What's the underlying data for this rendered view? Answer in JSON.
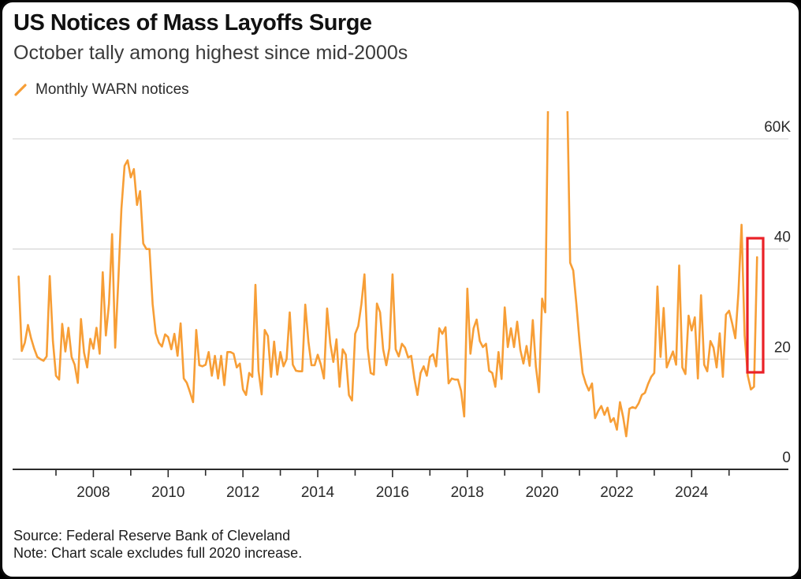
{
  "header": {
    "title": "US Notices of Mass Layoffs Surge",
    "subtitle": "October tally among highest since mid-2000s"
  },
  "legend": {
    "label": "Monthly WARN notices"
  },
  "footer": {
    "source": "Source: Federal Reserve Bank of Cleveland",
    "note": "Note: Chart scale excludes full 2020 increase."
  },
  "colors": {
    "line_orange": "#f79e36",
    "highlight_red": "#ea2127",
    "gridline_gray": "#d9d9d9",
    "axis_dark": "#2b2b2b",
    "tick_label": "#2a2a2a"
  },
  "chart_data": {
    "type": "line",
    "title": "US Notices of Mass Layoffs Surge",
    "subtitle": "October tally among highest since mid-2000s",
    "series_name": "Monthly WARN notices",
    "unit": "WARN notices, thousands",
    "grid": "horizontal",
    "ylim": [
      0,
      65
    ],
    "clipped_peaks": "Mar 2020 through Sep 2020 exceed the visible scale (chart scale excludes full 2020 increase)",
    "y_axis": {
      "ticks": [
        {
          "value": 0,
          "label": "0"
        },
        {
          "value": 20,
          "label": "20"
        },
        {
          "value": 40,
          "label": "40"
        },
        {
          "value": 60,
          "label": "60K"
        }
      ],
      "side": "right"
    },
    "x_axis": {
      "tick_years_first": 2007,
      "tick_years_last": 2025,
      "labels": [
        "2008",
        "2010",
        "2012",
        "2014",
        "2016",
        "2018",
        "2020",
        "2022",
        "2024"
      ]
    },
    "series": {
      "name": "Monthly WARN notices",
      "start_month": "2006-01",
      "end_month": "2025-10",
      "monthly_values_by_year": [
        {
          "year": 2006,
          "values": [
            35,
            21.5,
            23,
            26.2,
            23.8,
            21.9,
            20.4,
            20,
            19.7,
            20.5,
            35.1,
            23.3
          ]
        },
        {
          "year": 2007,
          "values": [
            17,
            16.3,
            26.4,
            21.4,
            25.7,
            20.4,
            19,
            15.7,
            27.3,
            21.2,
            18.5,
            23.7
          ]
        },
        {
          "year": 2008,
          "values": [
            21.9,
            25.7,
            21,
            35.8,
            24.3,
            30,
            42.7,
            22.1,
            34.4,
            47.3,
            55.1,
            56.1
          ]
        },
        {
          "year": 2009,
          "values": [
            53,
            54.5,
            48,
            50.5,
            41,
            40,
            40,
            30,
            24.7,
            23,
            22.3,
            24.5
          ]
        },
        {
          "year": 2010,
          "values": [
            24,
            21.8,
            24.6,
            20.6,
            26.5,
            16.5,
            15.7,
            14,
            12.2,
            25.3,
            18.9,
            18.7
          ]
        },
        {
          "year": 2011,
          "values": [
            19,
            21.3,
            17,
            20.6,
            16.5,
            20.6,
            15.3,
            21.3,
            21.3,
            21,
            18.5,
            19.2
          ]
        },
        {
          "year": 2012,
          "values": [
            14.5,
            13.5,
            17.5,
            16.8,
            33.5,
            17.9,
            13.6,
            25.3,
            24.2,
            16.8,
            23.2,
            17.2
          ]
        },
        {
          "year": 2013,
          "values": [
            21.3,
            18.7,
            20,
            28.5,
            19,
            17.9,
            17.8,
            17.8,
            29.9,
            23.2,
            18.9,
            18.9
          ]
        },
        {
          "year": 2014,
          "values": [
            20.8,
            19,
            16.5,
            29.2,
            22.9,
            19.5,
            23.6,
            15,
            21.8,
            20.8,
            13.5,
            12.5
          ]
        },
        {
          "year": 2015,
          "values": [
            24.6,
            26,
            30,
            35.4,
            22,
            17.5,
            17.2,
            30.1,
            28.5,
            21.8,
            18.9,
            22
          ]
        },
        {
          "year": 2016,
          "values": [
            35.4,
            21.8,
            20.5,
            22.8,
            22.1,
            20.3,
            20.6,
            16.5,
            13.5,
            17.5,
            18.7,
            17
          ]
        },
        {
          "year": 2017,
          "values": [
            20.4,
            20.9,
            18.7,
            25.6,
            24.6,
            25.8,
            15.6,
            16.5,
            16.3,
            16.3,
            14.2,
            9.6
          ]
        },
        {
          "year": 2018,
          "values": [
            32.8,
            21,
            25.6,
            27.2,
            23.3,
            22.2,
            22.8,
            17.9,
            17.5,
            15,
            21.3,
            16.4
          ]
        },
        {
          "year": 2019,
          "values": [
            29.4,
            22.2,
            25.6,
            22.2,
            26.8,
            21.7,
            19.2,
            22.4,
            18.8,
            27.1,
            18.7,
            14
          ]
        },
        {
          "year": 2020,
          "values": [
            31,
            28.5,
            70,
            70,
            70,
            70,
            70,
            70,
            70,
            37.5,
            36.1,
            30
          ]
        },
        {
          "year": 2021,
          "values": [
            23.2,
            17.5,
            15.6,
            14.3,
            15.6,
            9.3,
            10.6,
            11.5,
            9.9,
            11.2,
            8.6,
            9.3
          ]
        },
        {
          "year": 2022,
          "values": [
            7.2,
            12.2,
            9.5,
            6,
            11,
            11.3,
            11.1,
            12,
            13.5,
            13.9,
            15.5,
            16.8
          ]
        },
        {
          "year": 2023,
          "values": [
            17.5,
            33.2,
            20.4,
            29.3,
            18.5,
            20,
            21.4,
            19,
            37,
            18.5,
            17.3,
            27.9
          ]
        },
        {
          "year": 2024,
          "values": [
            25.2,
            27.6,
            16.5,
            31.6,
            19,
            17.8,
            23.3,
            22.1,
            18.5,
            24.7,
            16.8,
            28.1
          ]
        },
        {
          "year": 2025,
          "values": [
            28.8,
            26.5,
            23.8,
            32,
            44.4,
            24.3,
            17,
            14.5,
            15,
            38.5
          ]
        }
      ]
    },
    "highlight_box": {
      "covers": "Aug 2025 - Oct 2025",
      "highlighted_month": "October 2025",
      "stroke_color": "#ea2127"
    },
    "legend": [
      {
        "label": "Monthly WARN notices",
        "color": "#f79e36",
        "marker": "slash"
      }
    ]
  }
}
